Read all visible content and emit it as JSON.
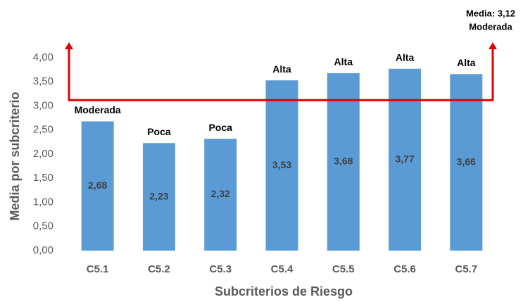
{
  "chart_data": {
    "type": "bar",
    "categories": [
      "C5.1",
      "C5.2",
      "C5.3",
      "C5.4",
      "C5.5",
      "C5.6",
      "C5.7"
    ],
    "values": [
      2.68,
      2.23,
      2.32,
      3.53,
      3.68,
      3.77,
      3.66
    ],
    "value_labels": [
      "2,68",
      "2,23",
      "2,32",
      "3,53",
      "3,68",
      "3,77",
      "3,66"
    ],
    "annotations": [
      "Moderada",
      "Poca",
      "Poca",
      "Alta",
      "Alta",
      "Alta",
      "Alta"
    ],
    "color": "#5b9bd5",
    "xlabel": "Subcriterios de Riesgo",
    "ylabel": "Media por subcriterio",
    "ylim": [
      0,
      4
    ],
    "yticks": [
      {
        "value": 0,
        "label": "0,00"
      },
      {
        "value": 0.5,
        "label": "0,50"
      },
      {
        "value": 1,
        "label": "1,00"
      },
      {
        "value": 1.5,
        "label": "1,50"
      },
      {
        "value": 2,
        "label": "2,00"
      },
      {
        "value": 2.5,
        "label": "2,50"
      },
      {
        "value": 3,
        "label": "3,00"
      },
      {
        "value": 3.5,
        "label": "3,50"
      },
      {
        "value": 4,
        "label": "4,00"
      }
    ],
    "mean": {
      "value": 3.12,
      "label": "Media: 3,12",
      "class": "Moderada",
      "color": "#e00000"
    },
    "grid": false
  }
}
